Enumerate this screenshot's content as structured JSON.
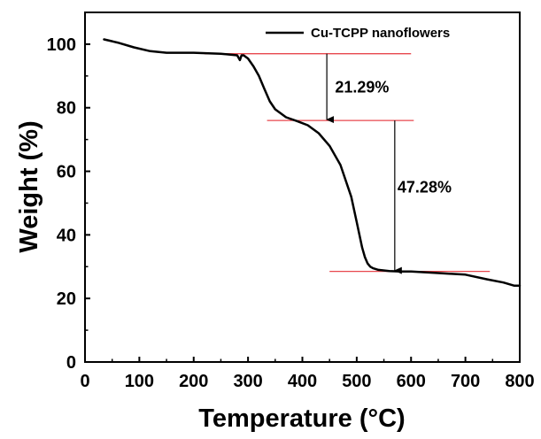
{
  "chart_data": {
    "type": "line",
    "xlabel": "Temperature (°C)",
    "ylabel": "Weight (%)",
    "xlim": [
      0,
      800
    ],
    "ylim": [
      0,
      110
    ],
    "x_ticks": [
      0,
      100,
      200,
      300,
      400,
      500,
      600,
      700,
      800
    ],
    "y_ticks": [
      0,
      20,
      40,
      60,
      80,
      100
    ],
    "grid": false,
    "legend_position": "top-right",
    "series": [
      {
        "name": "Cu-TCPP nanoflowers",
        "color": "#000000",
        "x": [
          35,
          60,
          90,
          120,
          150,
          200,
          250,
          280,
          285,
          288,
          292,
          300,
          310,
          320,
          330,
          340,
          350,
          370,
          390,
          410,
          430,
          450,
          470,
          490,
          500,
          510,
          515,
          520,
          525,
          530,
          540,
          560,
          580,
          600,
          650,
          700,
          740,
          770,
          790,
          800
        ],
        "y": [
          101.5,
          100.5,
          99,
          97.8,
          97.3,
          97.3,
          97,
          96.5,
          95,
          96.5,
          96.5,
          95.5,
          93,
          90,
          86,
          82,
          79.5,
          77,
          75.8,
          74.5,
          72,
          68,
          62,
          52,
          44,
          36,
          33,
          31,
          30,
          29.5,
          29,
          28.6,
          28.5,
          28.5,
          28,
          27.5,
          26,
          25,
          24,
          24
        ]
      }
    ],
    "reference_lines": [
      {
        "y": 97,
        "x_start": 220,
        "x_end": 600,
        "color": "#e8474d"
      },
      {
        "y": 76,
        "x_start": 335,
        "x_end": 605,
        "color": "#e8474d"
      },
      {
        "y": 28.5,
        "x_start": 450,
        "x_end": 745,
        "color": "#e8474d"
      }
    ],
    "arrows": [
      {
        "x": 445,
        "y_from": 97,
        "y_to": 76
      },
      {
        "x": 570,
        "y_from": 76,
        "y_to": 28.5
      }
    ],
    "annotations": [
      {
        "text": "21.29%",
        "x": 460,
        "y": 86.5
      },
      {
        "text": "47.28%",
        "x": 575,
        "y": 55
      }
    ]
  }
}
